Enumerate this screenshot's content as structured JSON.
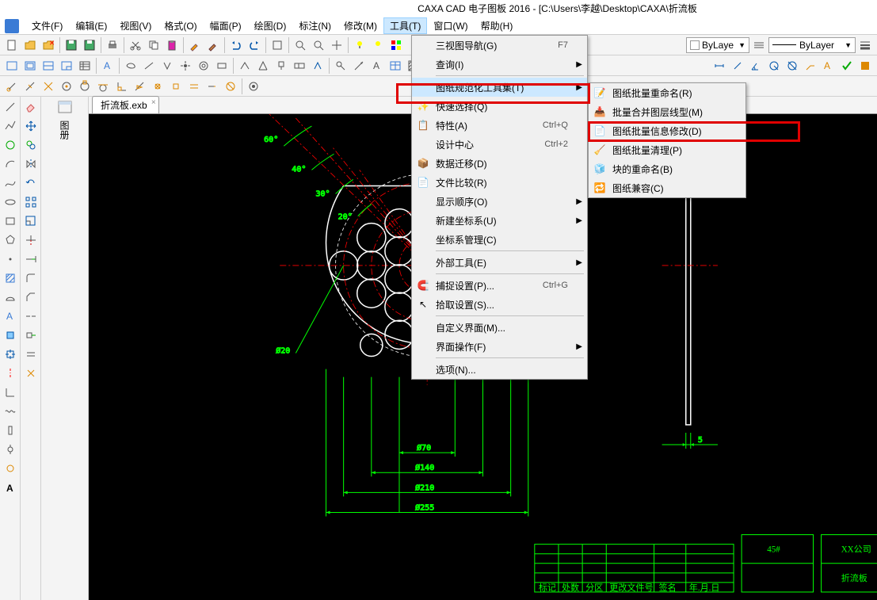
{
  "title": "CAXA CAD 电子图板 2016 - [C:\\Users\\李越\\Desktop\\CAXA\\折流板",
  "menubar": [
    "文件(F)",
    "编辑(E)",
    "视图(V)",
    "格式(O)",
    "幅面(P)",
    "绘图(D)",
    "标注(N)",
    "修改(M)",
    "工具(T)",
    "窗口(W)",
    "帮助(H)"
  ],
  "open_menu_index": 8,
  "layer_combo": "ByLaye",
  "linetype_combo": "ByLayer",
  "tab_label": "折流板.exb",
  "side_labels": [
    "图册"
  ],
  "tools_menu": [
    {
      "label": "三视图导航(G)",
      "shortcut": "F7",
      "icon": ""
    },
    {
      "label": "查询(I)",
      "sub": true,
      "icon": ""
    },
    {
      "sep": true
    },
    {
      "label": "图纸规范化工具集(T)",
      "sub": true,
      "hl": true,
      "icon": ""
    },
    {
      "label": "快速选择(Q)",
      "icon": "wand"
    },
    {
      "label": "特性(A)",
      "shortcut": "Ctrl+Q",
      "icon": "props"
    },
    {
      "label": "设计中心",
      "shortcut": "Ctrl+2",
      "icon": ""
    },
    {
      "label": "数据迁移(D)",
      "icon": "migrate"
    },
    {
      "label": "文件比较(R)",
      "icon": "compare"
    },
    {
      "label": "显示顺序(O)",
      "sub": true,
      "icon": ""
    },
    {
      "label": "新建坐标系(U)",
      "sub": true,
      "icon": ""
    },
    {
      "label": "坐标系管理(C)",
      "icon": ""
    },
    {
      "sep": true
    },
    {
      "label": "外部工具(E)",
      "sub": true,
      "icon": ""
    },
    {
      "sep": true
    },
    {
      "label": "捕捉设置(P)...",
      "shortcut": "Ctrl+G",
      "icon": "snap"
    },
    {
      "label": "拾取设置(S)...",
      "icon": "pick"
    },
    {
      "sep": true
    },
    {
      "label": "自定义界面(M)...",
      "icon": ""
    },
    {
      "label": "界面操作(F)",
      "sub": true,
      "icon": ""
    },
    {
      "sep": true
    },
    {
      "label": "选项(N)...",
      "icon": ""
    }
  ],
  "submenu": [
    {
      "label": "图纸批量重命名(R)",
      "icon": "rename"
    },
    {
      "label": "批量合并图层线型(M)",
      "icon": "merge"
    },
    {
      "label": "图纸批量信息修改(D)",
      "icon": "edit"
    },
    {
      "label": "图纸批量清理(P)",
      "icon": "clean"
    },
    {
      "label": "块的重命名(B)",
      "icon": "block"
    },
    {
      "label": "图纸兼容(C)",
      "icon": "compat"
    }
  ],
  "drawing": {
    "angles": [
      "60°",
      "40°",
      "30°",
      "20°"
    ],
    "dia_small": "Ø20",
    "dims": [
      "Ø70",
      "Ø140",
      "Ø210",
      "Ø255"
    ],
    "side_dim": "5",
    "titleblock": {
      "headers": [
        "标记",
        "处数",
        "分区",
        "更改文件号",
        "签名",
        "年.月.日"
      ],
      "material": "45#",
      "company": "XX公司",
      "partname": "折流板"
    }
  }
}
